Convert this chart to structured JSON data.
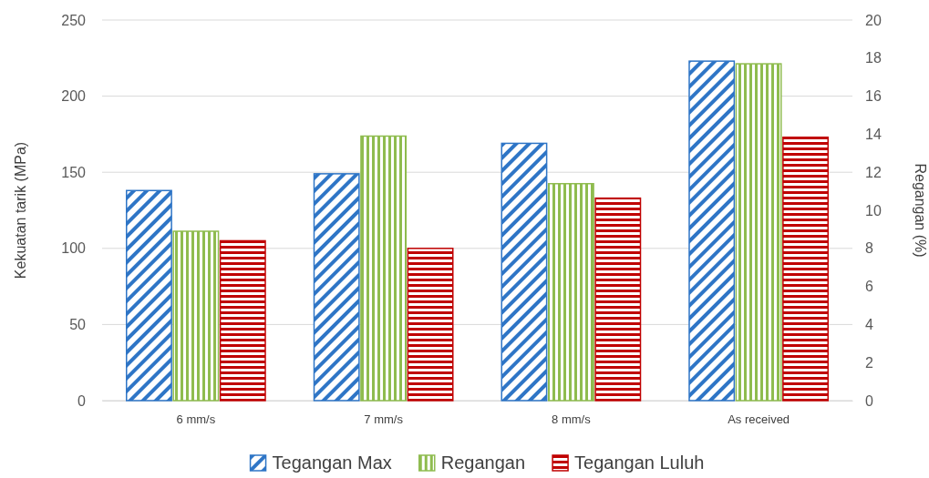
{
  "chart_data": {
    "type": "bar",
    "categories": [
      "6 mm/s",
      "7 mm/s",
      "8 mm/s",
      "As received"
    ],
    "series": [
      {
        "name": "Tegangan Max",
        "color": "#2e75c6",
        "values": [
          138,
          149,
          169,
          223
        ]
      },
      {
        "name": "Regangan",
        "color": "#8fbc4f",
        "values": [
          8.9,
          13.9,
          11.4,
          17.7
        ],
        "axis": "y2"
      },
      {
        "name": "Tegangan Luluh",
        "color": "#c00000",
        "values": [
          105,
          100,
          133,
          173
        ]
      }
    ],
    "ylabel": "Kekuatan tarik (MPa)",
    "y2label": "Regangan (%)",
    "ylim": [
      0,
      250
    ],
    "yticks": [
      0,
      50,
      100,
      150,
      200,
      250
    ],
    "y2lim": [
      0,
      20
    ],
    "y2ticks": [
      0,
      2,
      4,
      6,
      8,
      10,
      12,
      14,
      16,
      18,
      20
    ],
    "grid": "y",
    "legend": "bottom"
  }
}
